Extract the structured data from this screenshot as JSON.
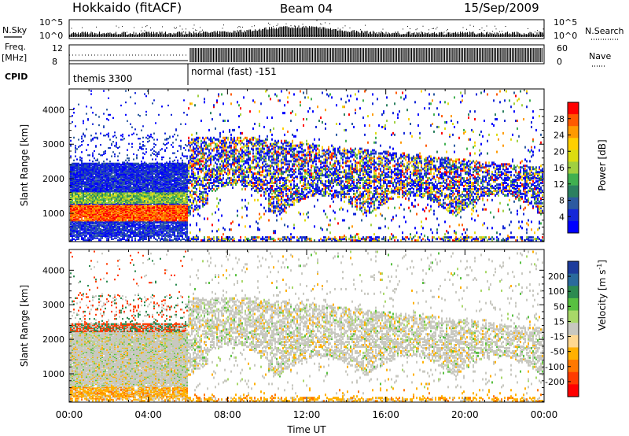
{
  "header": {
    "title": "Hokkaido (fitACF)",
    "beam": "Beam 04",
    "date": "15/Sep/2009"
  },
  "side_labels": {
    "nsky": "N.Sky",
    "freq": "Freq.",
    "freq_unit": "[MHz]",
    "cpid": "CPID",
    "nsearch": "N.Search",
    "nave": "Nave"
  },
  "noise_panel": {
    "left_ticks": [
      "10^5",
      "10^0"
    ],
    "right_ticks": [
      "10^5",
      "10^0"
    ]
  },
  "freq_panel": {
    "left_ticks": [
      "12",
      "8"
    ],
    "right_ticks": [
      "60",
      "0"
    ]
  },
  "cpid_panel": {
    "segments": [
      {
        "label": "themis 3300",
        "start": "00:00",
        "end": "06:00"
      },
      {
        "label": "normal (fast) -151",
        "start": "06:00",
        "end": "24:00"
      }
    ]
  },
  "chart_data": [
    {
      "type": "heatmap",
      "name": "power",
      "ylabel": "Slant Range [km]",
      "yticks": [
        1000,
        2000,
        3000,
        4000
      ],
      "ylim": [
        180,
        4600
      ],
      "xlim": [
        0,
        24
      ],
      "colorbar": {
        "label": "Power [dB]",
        "ticks": [
          "28",
          "24",
          "20",
          "16",
          "12",
          "8",
          "4"
        ],
        "colors": [
          "#ff0000",
          "#ff5a00",
          "#ff9a00",
          "#ffd000",
          "#dcdc10",
          "#a0d040",
          "#40b050",
          "#2c8060",
          "#2c5aa0",
          "#1428d8",
          "#0000ff"
        ]
      }
    },
    {
      "type": "heatmap",
      "name": "velocity",
      "ylabel": "Slant Range [km]",
      "yticks": [
        1000,
        2000,
        3000,
        4000
      ],
      "ylim": [
        180,
        4600
      ],
      "xlim": [
        0,
        24
      ],
      "xlabel": "Time UT",
      "xticks": [
        "00:00",
        "04:00",
        "08:00",
        "12:00",
        "16:00",
        "20:00",
        "00:00"
      ],
      "colorbar": {
        "label": "Velocity [m s",
        "label_exp": "-1",
        "label_end": "]",
        "ticks": [
          "200",
          "100",
          "50",
          "15",
          "-15",
          "-50",
          "-100",
          "-200"
        ],
        "colors": [
          "#1e3c9c",
          "#2a6a9c",
          "#2c8a50",
          "#58c040",
          "#a8d868",
          "#c8c8c0",
          "#ffd890",
          "#ffb000",
          "#ff7800",
          "#ff3c00",
          "#ff0000"
        ]
      }
    }
  ]
}
